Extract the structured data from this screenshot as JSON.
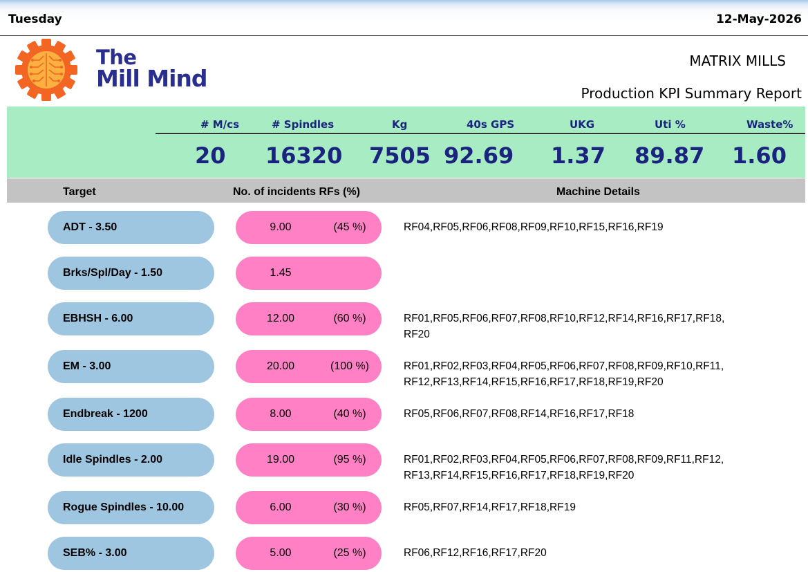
{
  "header": {
    "day": "Tuesday",
    "date": "12-May-2026"
  },
  "brand": {
    "line1": "The",
    "line2": "Mill Mind",
    "color": "#2a2f8f"
  },
  "company": "MATRIX MILLS",
  "report_title": "Production KPI Summary Report",
  "kpis": [
    {
      "label": "# M/cs",
      "value": "20"
    },
    {
      "label": "# Spindles",
      "value": "16320"
    },
    {
      "label": "Kg",
      "value": "7505"
    },
    {
      "label": "40s GPS",
      "value": "92.69"
    },
    {
      "label": "UKG",
      "value": "1.37"
    },
    {
      "label": "Uti %",
      "value": "89.87"
    },
    {
      "label": "Waste%",
      "value": "1.60"
    }
  ],
  "table_headers": {
    "target": "Target",
    "incidents": "No. of incidents RFs (%)",
    "details": "Machine Details"
  },
  "rows": [
    {
      "target": "ADT - 3.50",
      "count": "9.00",
      "pct": "(45 %)",
      "details": "RF04,RF05,RF06,RF08,RF09,RF10,RF15,RF16,RF19"
    },
    {
      "target": "Brks/Spl/Day - 1.50",
      "count": "1.45",
      "pct": "",
      "details": ""
    },
    {
      "target": "EBHSH - 6.00",
      "count": "12.00",
      "pct": "(60 %)",
      "details": "RF01,RF05,RF06,RF07,RF08,RF10,RF12,RF14,RF16,RF17,RF18, RF20"
    },
    {
      "target": "EM - 3.00",
      "count": "20.00",
      "pct": "(100 %)",
      "details": "RF01,RF02,RF03,RF04,RF05,RF06,RF07,RF08,RF09,RF10,RF11, RF12,RF13,RF14,RF15,RF16,RF17,RF18,RF19,RF20"
    },
    {
      "target": "Endbreak - 1200",
      "count": "8.00",
      "pct": "(40 %)",
      "details": "RF05,RF06,RF07,RF08,RF14,RF16,RF17,RF18"
    },
    {
      "target": "Idle Spindles - 2.00",
      "count": "19.00",
      "pct": "(95 %)",
      "details": "RF01,RF02,RF03,RF04,RF05,RF06,RF07,RF08,RF09,RF11,RF12, RF13,RF14,RF15,RF16,RF17,RF18,RF19,RF20"
    },
    {
      "target": "Rogue Spindles - 10.00",
      "count": "6.00",
      "pct": "(30 %)",
      "details": "RF05,RF07,RF14,RF17,RF18,RF19"
    },
    {
      "target": "SEB% - 3.00",
      "count": "5.00",
      "pct": "(25 %)",
      "details": "RF06,RF12,RF16,RF17,RF20"
    }
  ],
  "colors": {
    "kpi_band": "#a8ecc4",
    "kpi_text": "#1a237e",
    "target_pill": "#9fc6e0",
    "incident_pill": "#ff80c4",
    "header_band": "#c3c3c3",
    "logo_orange": "#f26522"
  }
}
